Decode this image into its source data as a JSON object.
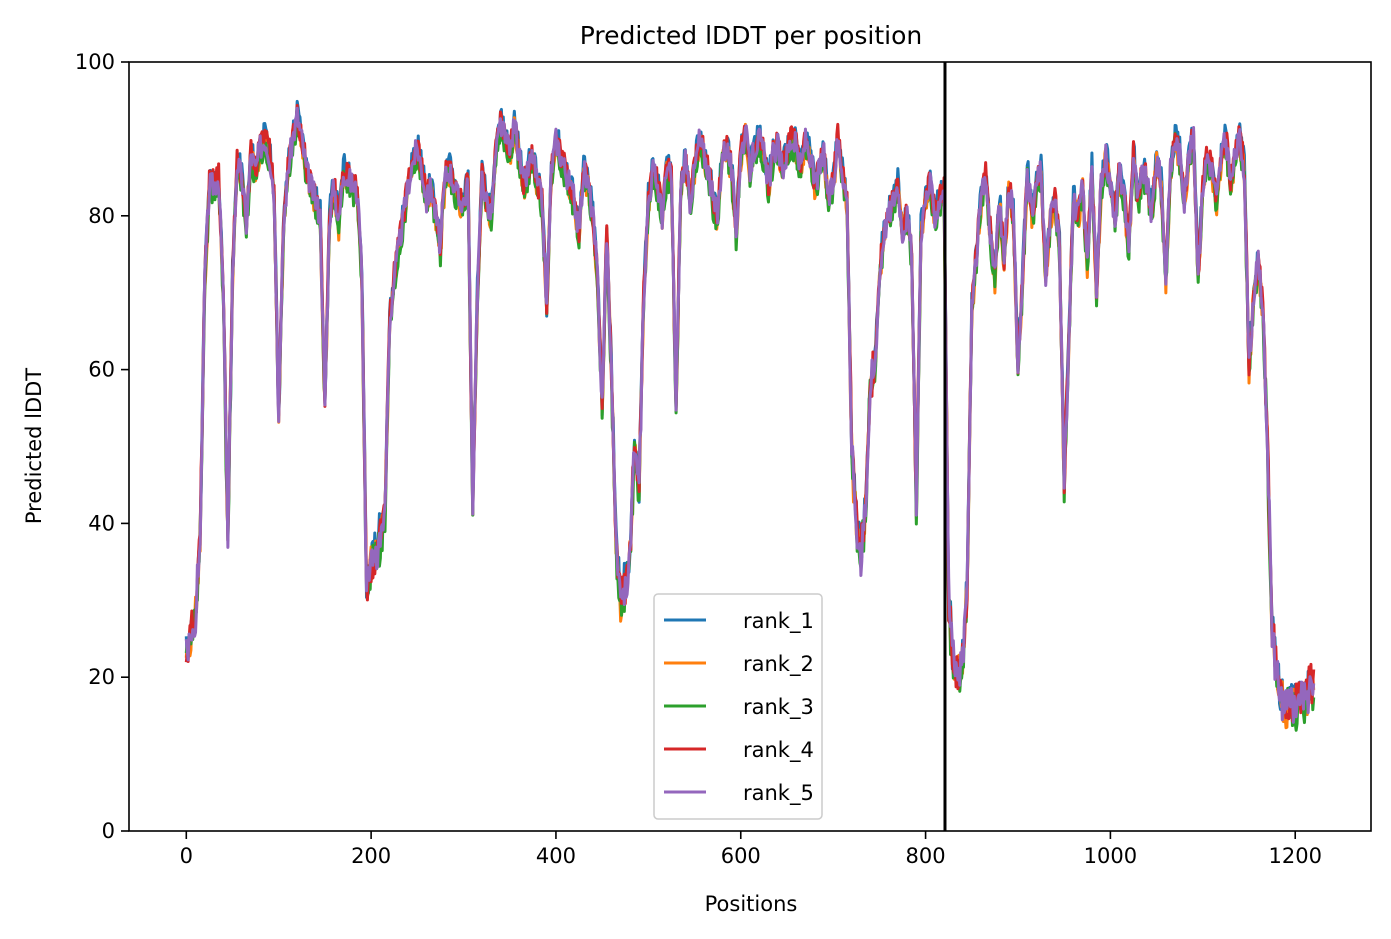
{
  "chart_data": {
    "type": "line",
    "title": "Predicted lDDT per position",
    "xlabel": "Positions",
    "ylabel": "Predicted lDDT",
    "xlim": [
      -62,
      1282
    ],
    "ylim": [
      0,
      100
    ],
    "xticks": [
      0,
      200,
      400,
      600,
      800,
      1000,
      1200
    ],
    "yticks": [
      0,
      20,
      40,
      60,
      80,
      100
    ],
    "grid": false,
    "legend_position": "lower center",
    "vline": 821,
    "base_profile": {
      "x": [
        0,
        5,
        10,
        15,
        20,
        25,
        30,
        35,
        40,
        45,
        50,
        55,
        60,
        65,
        70,
        75,
        80,
        85,
        90,
        95,
        100,
        105,
        110,
        115,
        120,
        125,
        130,
        135,
        140,
        145,
        150,
        155,
        160,
        165,
        170,
        175,
        180,
        185,
        190,
        195,
        200,
        205,
        210,
        215,
        220,
        225,
        230,
        235,
        240,
        245,
        250,
        255,
        260,
        265,
        270,
        275,
        280,
        285,
        290,
        295,
        300,
        305,
        310,
        315,
        320,
        325,
        330,
        335,
        340,
        345,
        350,
        355,
        360,
        365,
        370,
        375,
        380,
        385,
        390,
        395,
        400,
        405,
        410,
        415,
        420,
        425,
        430,
        435,
        440,
        445,
        450,
        455,
        460,
        465,
        470,
        475,
        480,
        485,
        490,
        495,
        500,
        505,
        510,
        515,
        520,
        525,
        530,
        535,
        540,
        545,
        550,
        555,
        560,
        565,
        570,
        575,
        580,
        585,
        590,
        595,
        600,
        605,
        610,
        615,
        620,
        625,
        630,
        635,
        640,
        645,
        650,
        655,
        660,
        665,
        670,
        675,
        680,
        685,
        690,
        695,
        700,
        705,
        710,
        715,
        720,
        725,
        730,
        735,
        740,
        745,
        750,
        755,
        760,
        765,
        770,
        775,
        780,
        785,
        790,
        795,
        800,
        805,
        810,
        815,
        820,
        825,
        830,
        835,
        840,
        845,
        850,
        855,
        860,
        865,
        870,
        875,
        880,
        885,
        890,
        895,
        900,
        905,
        910,
        915,
        920,
        925,
        930,
        935,
        940,
        945,
        950,
        955,
        960,
        965,
        970,
        975,
        980,
        985,
        990,
        995,
        1000,
        1005,
        1010,
        1015,
        1020,
        1025,
        1030,
        1035,
        1040,
        1045,
        1050,
        1055,
        1060,
        1065,
        1070,
        1075,
        1080,
        1085,
        1090,
        1095,
        1100,
        1105,
        1110,
        1115,
        1120,
        1125,
        1130,
        1135,
        1140,
        1145,
        1150,
        1155,
        1160,
        1165,
        1170,
        1175,
        1180,
        1185,
        1190,
        1195,
        1200,
        1205,
        1210,
        1215,
        1220
      ],
      "y": [
        23,
        25,
        28,
        38,
        72,
        84,
        84,
        85,
        70,
        38,
        72,
        87,
        85,
        79,
        88,
        86,
        89,
        90,
        88,
        83,
        54,
        78,
        86,
        90,
        93,
        90,
        86,
        84,
        82,
        80,
        55,
        80,
        84,
        79,
        86,
        85,
        84,
        83,
        72,
        32,
        35,
        36,
        38,
        42,
        66,
        72,
        76,
        80,
        84,
        87,
        89,
        86,
        82,
        84,
        80,
        76,
        85,
        86,
        84,
        82,
        82,
        84,
        42,
        70,
        85,
        82,
        80,
        88,
        92,
        90,
        88,
        92,
        88,
        84,
        86,
        88,
        84,
        82,
        68,
        86,
        90,
        88,
        86,
        84,
        82,
        78,
        86,
        84,
        80,
        72,
        55,
        78,
        60,
        38,
        30,
        32,
        36,
        50,
        45,
        70,
        82,
        86,
        84,
        80,
        86,
        85,
        55,
        84,
        87,
        82,
        86,
        90,
        88,
        86,
        82,
        80,
        88,
        89,
        86,
        78,
        88,
        91,
        86,
        89,
        90,
        88,
        84,
        88,
        89,
        86,
        88,
        90,
        89,
        86,
        90,
        88,
        84,
        86,
        88,
        82,
        84,
        90,
        86,
        82,
        50,
        40,
        36,
        42,
        58,
        60,
        72,
        78,
        80,
        82,
        84,
        78,
        80,
        75,
        42,
        78,
        82,
        84,
        80,
        82,
        84,
        30,
        22,
        20,
        22,
        32,
        68,
        75,
        82,
        85,
        78,
        72,
        82,
        74,
        84,
        80,
        60,
        72,
        86,
        80,
        84,
        86,
        72,
        80,
        82,
        76,
        45,
        64,
        82,
        80,
        84,
        74,
        86,
        70,
        84,
        88,
        84,
        80,
        86,
        82,
        76,
        88,
        82,
        86,
        84,
        80,
        88,
        84,
        72,
        86,
        90,
        88,
        82,
        88,
        90,
        72,
        84,
        88,
        86,
        82,
        88,
        90,
        84,
        88,
        90,
        86,
        60,
        70,
        74,
        68,
        50,
        26,
        20,
        17,
        16,
        17,
        16,
        18,
        17,
        18,
        19
      ]
    },
    "series": [
      {
        "name": "rank_1",
        "color": "#1f77b4",
        "offset": 0.6,
        "seed": 11
      },
      {
        "name": "rank_2",
        "color": "#ff7f0e",
        "offset": -0.5,
        "seed": 23
      },
      {
        "name": "rank_3",
        "color": "#2ca02c",
        "offset": -0.9,
        "seed": 37
      },
      {
        "name": "rank_4",
        "color": "#d62728",
        "offset": 0.3,
        "seed": 51
      },
      {
        "name": "rank_5",
        "color": "#9467bd",
        "offset": 0.0,
        "seed": 67
      }
    ]
  }
}
